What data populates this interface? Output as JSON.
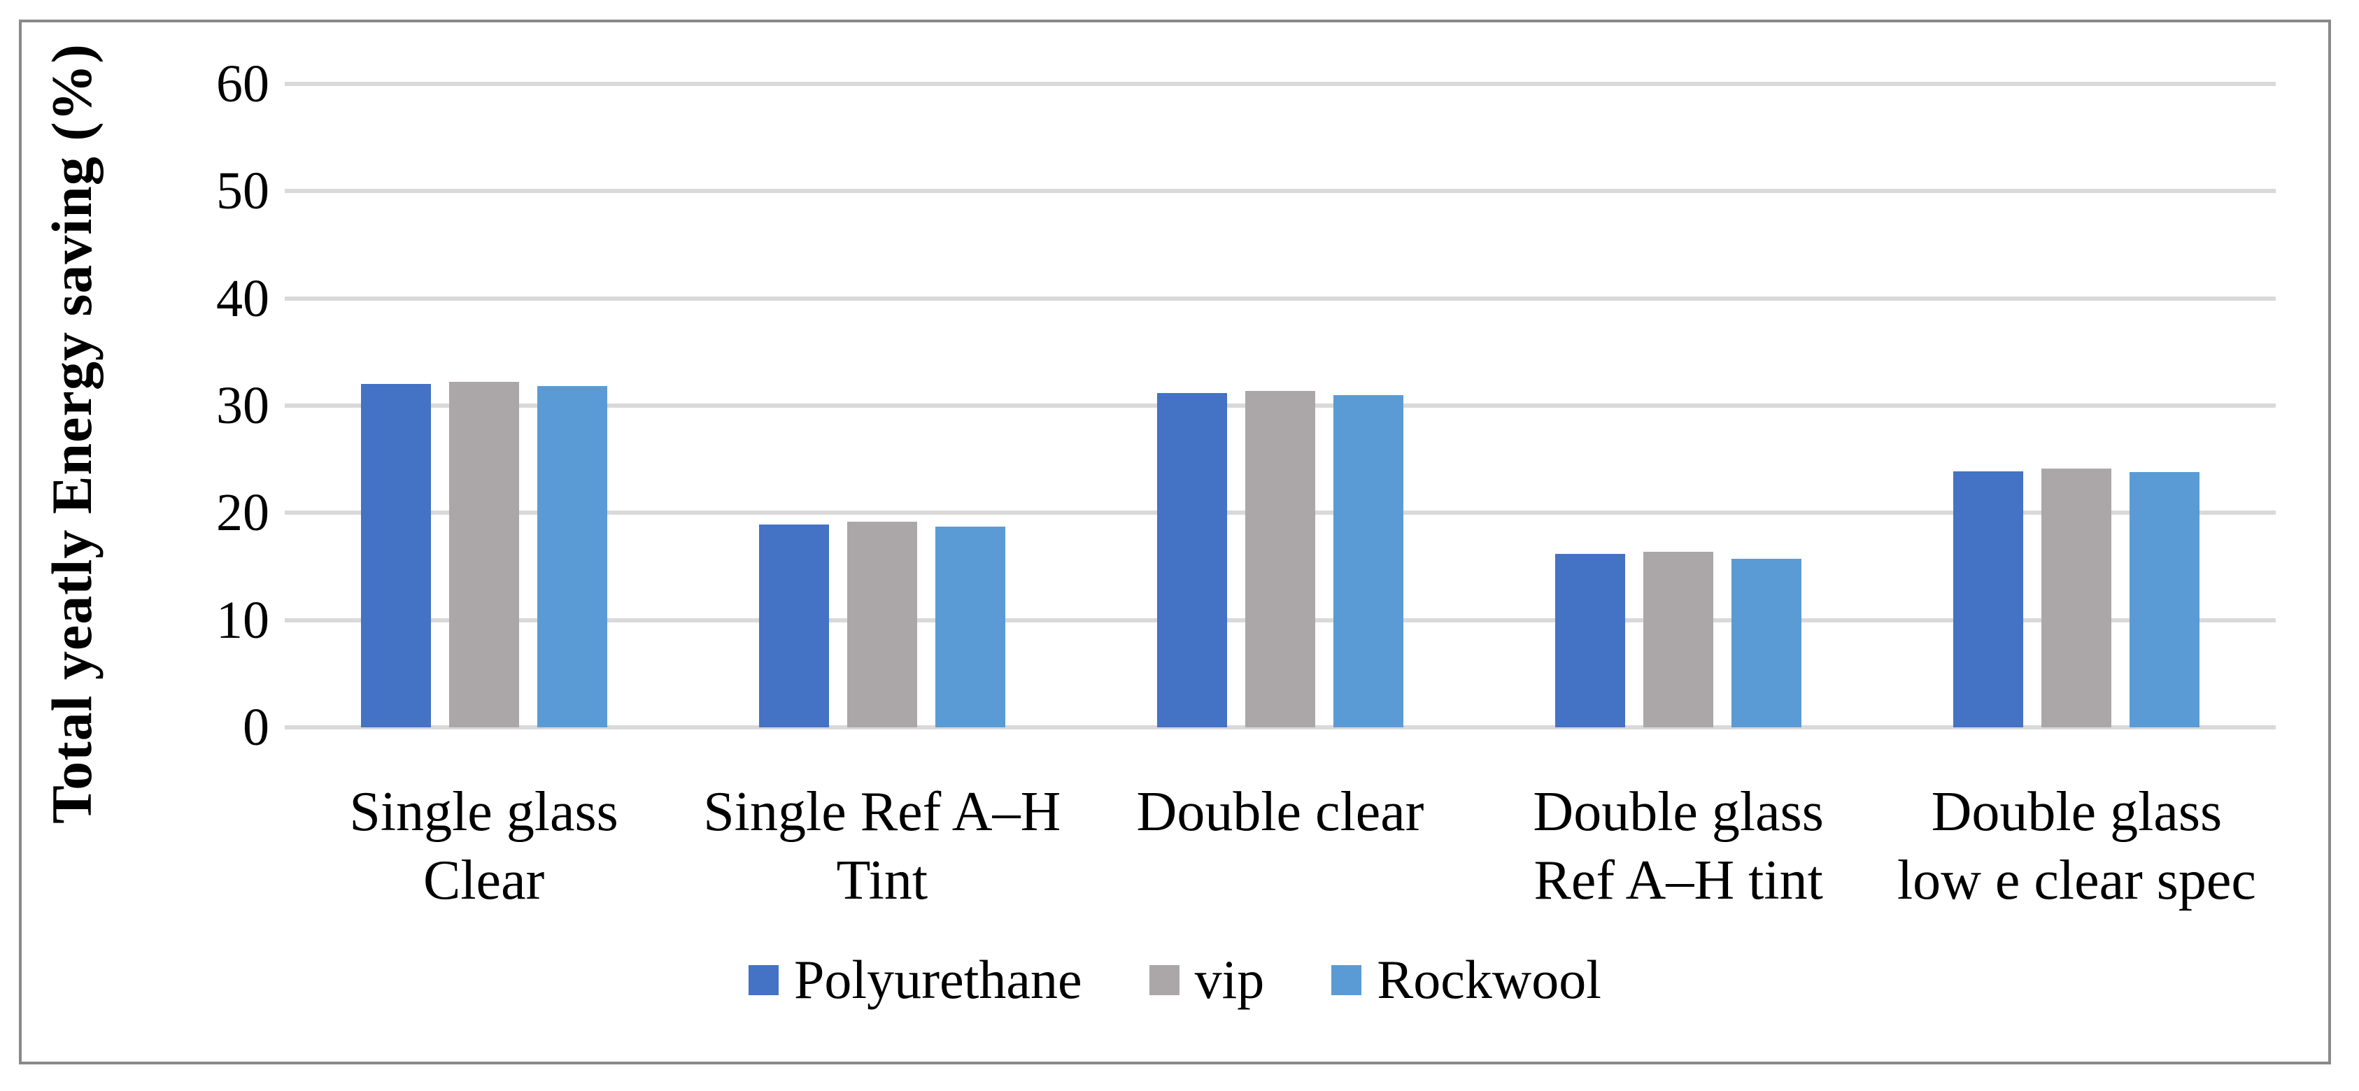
{
  "chart_data": {
    "type": "bar",
    "title": "",
    "y_axis": {
      "title": "Total yeatly Energy saving  (%)",
      "min": 0,
      "max": 60,
      "tick_step": 10,
      "ticks": [
        60,
        50,
        40,
        30,
        20,
        10,
        0
      ]
    },
    "categories": [
      "Single glass Clear",
      "Single Ref A–H Tint",
      "Double clear",
      "Double glass Ref A–H tint",
      "Double glass low e clear spec"
    ],
    "category_lines": [
      [
        "Single glass",
        "Clear"
      ],
      [
        "Single Ref A–H",
        "Tint"
      ],
      [
        "Double clear"
      ],
      [
        "Double glass",
        "Ref A–H tint"
      ],
      [
        "Double glass",
        "low e clear spec"
      ]
    ],
    "series": [
      {
        "name": "Polyurethane",
        "color": "#4472C4",
        "values": [
          32.0,
          18.9,
          31.2,
          16.2,
          23.9
        ]
      },
      {
        "name": "vip",
        "color": "#ABA7A8",
        "values": [
          32.2,
          19.2,
          31.4,
          16.4,
          24.1
        ]
      },
      {
        "name": "Rockwool",
        "color": "#5B9BD5",
        "values": [
          31.8,
          18.7,
          31.0,
          15.7,
          23.8
        ]
      }
    ],
    "legend": {
      "position": "bottom",
      "labels": [
        "Polyurethane",
        "vip",
        "Rockwool"
      ]
    },
    "grid": {
      "visible": true,
      "color": "#D9D9D9"
    },
    "frame_color": "#898989"
  }
}
